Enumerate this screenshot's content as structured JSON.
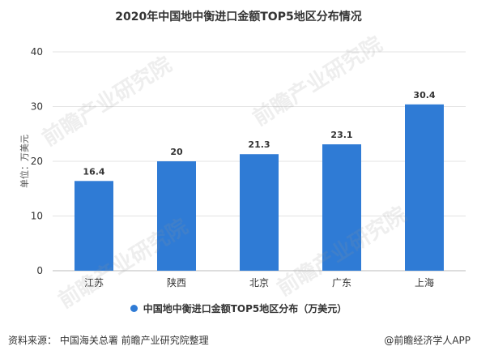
{
  "chart_data": {
    "type": "bar",
    "title": "2020年中国地中衡进口金额TOP5地区分布情况",
    "ylabel": "单位：万美元",
    "categories": [
      "江苏",
      "陕西",
      "北京",
      "广东",
      "上海"
    ],
    "series": [
      {
        "name": "中国地中衡进口金额TOP5地区分布（万美元）",
        "values": [
          16.4,
          20,
          21.3,
          23.1,
          30.4
        ],
        "value_labels": [
          "16.4",
          "20",
          "21.3",
          "23.1",
          "30.4"
        ]
      }
    ],
    "yticks": [
      "0",
      "10",
      "20",
      "30",
      "40"
    ],
    "ylim": [
      0,
      40
    ],
    "grid": true,
    "legend_position": "bottom",
    "bar_color": "#2f7bd5"
  },
  "footer": {
    "source": "资料来源：  中国海关总署 前瞻产业研究院整理",
    "brand": "@前瞻经济学人APP"
  },
  "watermark": "前瞻产业研究院"
}
